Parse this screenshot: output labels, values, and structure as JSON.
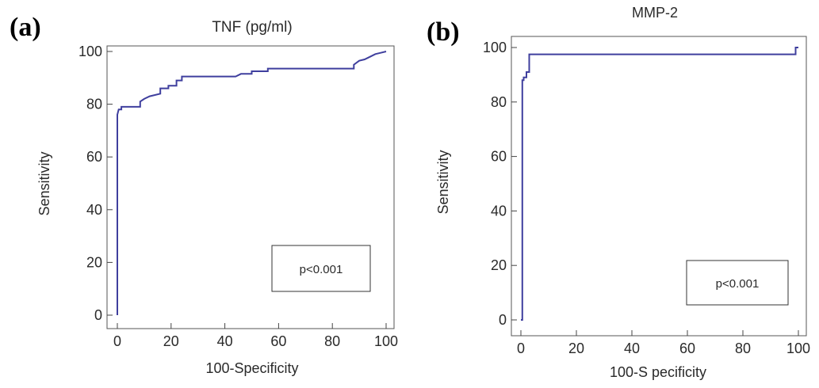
{
  "panels": [
    {
      "letter": "(a)"
    },
    {
      "letter": "(b)"
    }
  ],
  "chart_data": [
    {
      "type": "line",
      "title": "TNF (pg/ml)",
      "xlabel": "100-Specificity",
      "ylabel": "Sensitivity",
      "xlim": [
        0,
        100
      ],
      "ylim": [
        0,
        100
      ],
      "xticks": [
        0,
        20,
        40,
        60,
        80,
        100
      ],
      "yticks": [
        0,
        20,
        40,
        60,
        80,
        100
      ],
      "xtick_labels": [
        "0",
        "20",
        "40",
        "60",
        "80",
        "100"
      ],
      "ytick_labels": [
        "0",
        "20",
        "40",
        "60",
        "80",
        "100"
      ],
      "grid": false,
      "annotation": "p<0.001",
      "line_color": "#3f3f9e",
      "series": [
        {
          "x": [
            0,
            0,
            0.5,
            1.5,
            1.5,
            8.5,
            8.5,
            10,
            12,
            16,
            16,
            19,
            19,
            22,
            22,
            24,
            24,
            44,
            46,
            50,
            50,
            56,
            56,
            88,
            88,
            90,
            92,
            94,
            96,
            98,
            100
          ],
          "y": [
            0,
            76,
            78,
            78,
            79,
            79,
            81,
            82,
            83,
            84,
            86,
            86,
            87,
            87,
            89,
            89,
            90.5,
            90.5,
            91.5,
            91.5,
            92.5,
            92.5,
            93.5,
            93.5,
            95,
            96.5,
            97,
            98,
            99,
            99.5,
            100
          ]
        }
      ]
    },
    {
      "type": "line",
      "title": "MMP-2",
      "xlabel": "100-S pecificity",
      "ylabel": "Sensitivity",
      "xlim": [
        0,
        100
      ],
      "ylim": [
        0,
        100
      ],
      "xticks": [
        0,
        20,
        40,
        60,
        80,
        100
      ],
      "yticks": [
        0,
        20,
        40,
        60,
        80,
        100
      ],
      "xtick_labels": [
        "0",
        "20",
        "40",
        "60",
        "80",
        "100"
      ],
      "ytick_labels": [
        "0",
        "20",
        "40",
        "60",
        "80",
        "100"
      ],
      "grid": false,
      "annotation": "p<0.001",
      "line_color": "#3f3f9e",
      "series": [
        {
          "x": [
            0,
            0.5,
            0.5,
            1,
            1,
            2,
            2,
            3,
            3,
            99,
            99,
            100
          ],
          "y": [
            0,
            0,
            88,
            88,
            89,
            89,
            91,
            91,
            97.5,
            97.5,
            100,
            100
          ]
        }
      ]
    }
  ]
}
